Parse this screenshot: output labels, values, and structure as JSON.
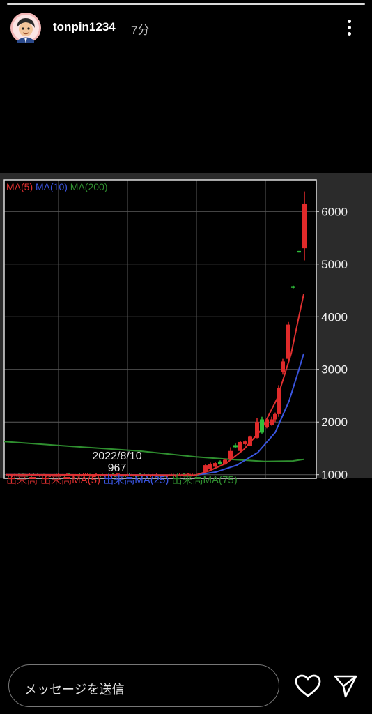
{
  "story": {
    "username": "tonpin1234",
    "time_ago": "7分"
  },
  "reply": {
    "placeholder": "メッセージを送信"
  },
  "icons": {
    "avatar": "cartoon-avatar-icon",
    "more": "more-vertical-icon",
    "like": "heart-icon",
    "share": "send-icon"
  },
  "chart_data": {
    "type": "candlestick",
    "legend": [
      "MA(5)",
      "MA(10)",
      "MA(200)"
    ],
    "legend_colors": [
      "#e03030",
      "#3a55e0",
      "#2f8f2f"
    ],
    "yticks": [
      1000,
      2000,
      3000,
      4000,
      5000,
      6000
    ],
    "ylim": [
      930,
      6600
    ],
    "cursor_date": "2022/8/10",
    "cursor_value": "967",
    "bottom_label": "出来高  出来高MA(5)  出来高MA(25)  出来高MA(75)",
    "bottom_colors": [
      "#e03030",
      "#e03030",
      "#3a55e0",
      "#2f8f2f"
    ],
    "candles": [
      {
        "o": 1050,
        "c": 1180,
        "h": 1200,
        "l": 1040
      },
      {
        "o": 1100,
        "c": 1200,
        "h": 1230,
        "l": 1090
      },
      {
        "o": 1150,
        "c": 1220,
        "h": 1240,
        "l": 1130
      },
      {
        "o": 1250,
        "c": 1200,
        "h": 1270,
        "l": 1190
      },
      {
        "o": 1200,
        "c": 1280,
        "h": 1290,
        "l": 1190
      },
      {
        "o": 1300,
        "c": 1450,
        "h": 1520,
        "l": 1290
      },
      {
        "o": 1560,
        "c": 1520,
        "h": 1590,
        "l": 1500
      },
      {
        "o": 1450,
        "c": 1620,
        "h": 1640,
        "l": 1440
      },
      {
        "o": 1580,
        "c": 1630,
        "h": 1650,
        "l": 1560
      },
      {
        "o": 1550,
        "c": 1720,
        "h": 1740,
        "l": 1540
      },
      {
        "o": 1700,
        "c": 2000,
        "h": 2080,
        "l": 1690
      },
      {
        "o": 2050,
        "c": 1800,
        "h": 2100,
        "l": 1780
      },
      {
        "o": 1900,
        "c": 2050,
        "h": 2080,
        "l": 1880
      },
      {
        "o": 1950,
        "c": 2050,
        "h": 2100,
        "l": 1930
      },
      {
        "o": 2050,
        "c": 2150,
        "h": 2180,
        "l": 2000
      },
      {
        "o": 2150,
        "c": 2650,
        "h": 2700,
        "l": 2100
      },
      {
        "o": 2950,
        "c": 3150,
        "h": 3200,
        "l": 2900
      },
      {
        "o": 3200,
        "c": 3850,
        "h": 3900,
        "l": 3150
      },
      {
        "o": 4580,
        "c": 4550,
        "h": 4590,
        "l": 4540
      },
      {
        "o": 5250,
        "c": 5220,
        "h": 5250,
        "l": 5220
      },
      {
        "o": 5300,
        "c": 6150,
        "h": 6380,
        "l": 5070
      }
    ]
  }
}
